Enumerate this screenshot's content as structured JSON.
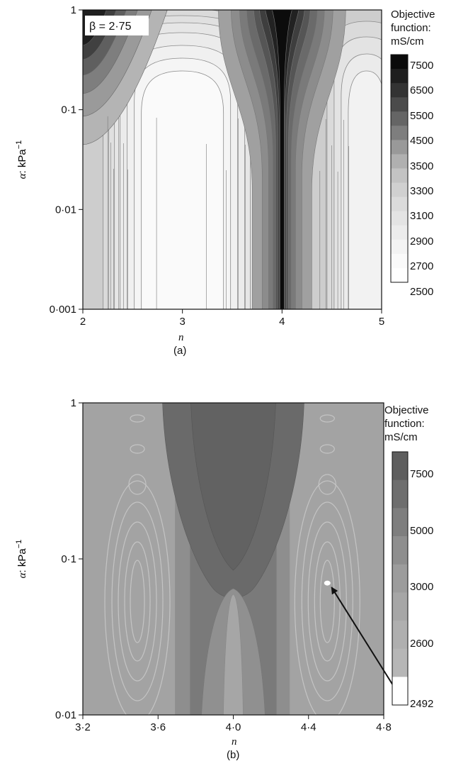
{
  "chart_data": [
    {
      "type": "heatmap",
      "panel_label": "(a)",
      "annotation": "β = 2·75",
      "xlabel": "n",
      "ylabel": "α: kPa⁻¹",
      "xlim": [
        2,
        5
      ],
      "ylim": [
        0.001,
        1
      ],
      "yscale": "log",
      "x_ticks": [
        2,
        3,
        4,
        5
      ],
      "x_tick_labels": [
        "2",
        "3",
        "4",
        "5"
      ],
      "y_ticks": [
        0.001,
        0.01,
        0.1,
        1
      ],
      "y_tick_labels": [
        "0·001",
        "0·01",
        "0·1",
        "1"
      ],
      "colorbar": {
        "title": [
          "Objective",
          "function:",
          "mS/cm"
        ],
        "labels": [
          "7500",
          "6500",
          "5500",
          "4500",
          "3500",
          "3300",
          "3100",
          "2900",
          "2700",
          "2500"
        ],
        "colors": [
          "#0a0a0a",
          "#1e1e1e",
          "#333333",
          "#4b4b4b",
          "#656565",
          "#7e7e7e",
          "#999999",
          "#b0b0b0",
          "#c3c3c3",
          "#d0d0d0",
          "#dbdbdb",
          "#e4e4e4",
          "#ececec",
          "#f3f3f3",
          "#fafafa",
          "#ffffff"
        ]
      },
      "features": [
        {
          "description": "valley",
          "x": 3.0,
          "level": 2500
        },
        {
          "description": "ridge",
          "x": 4.0,
          "level": 7500
        },
        {
          "description": "high corner",
          "x": 2.0,
          "y": 1.0,
          "level": 7500
        }
      ]
    },
    {
      "type": "heatmap",
      "panel_label": "(b)",
      "xlabel": "n",
      "ylabel": "α: kPa⁻¹",
      "xlim": [
        3.2,
        4.8
      ],
      "ylim": [
        0.01,
        1
      ],
      "yscale": "log",
      "x_ticks": [
        3.2,
        3.6,
        4.0,
        4.4,
        4.8
      ],
      "x_tick_labels": [
        "3·2",
        "3·6",
        "4·0",
        "4·4",
        "4·8"
      ],
      "y_ticks": [
        0.01,
        0.1,
        1
      ],
      "y_tick_labels": [
        "0·01",
        "0·1",
        "1"
      ],
      "colorbar": {
        "title": [
          "Objective",
          "function:",
          "mS/cm"
        ],
        "labels": [
          "7500",
          "5000",
          "3000",
          "2600",
          "2492"
        ],
        "colors": [
          "#5e5e5e",
          "#6e6e6e",
          "#7e7e7e",
          "#8e8e8e",
          "#9c9c9c",
          "#a6a6a6",
          "#afafaf",
          "#b6b6b6",
          "#ffffff"
        ]
      },
      "minimum_point": {
        "n": 4.5,
        "alpha": 0.07
      }
    }
  ]
}
